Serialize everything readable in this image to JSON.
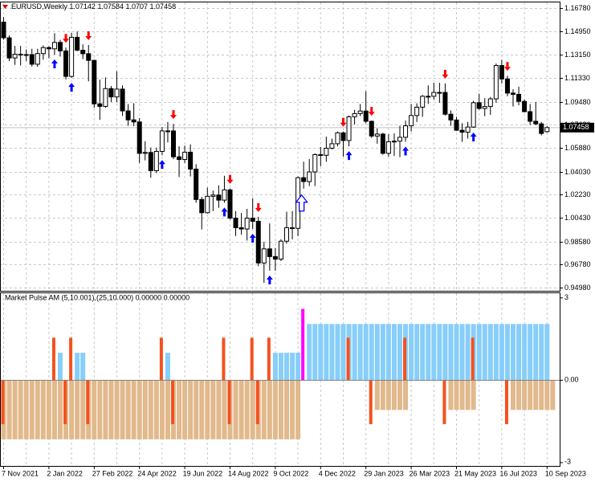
{
  "chart_data": [
    {
      "type": "candlestick",
      "symbol": "EURUSD,Weekly",
      "categories": [
        "7 Nov 2021",
        null,
        null,
        null,
        null,
        null,
        null,
        null,
        "2 Jan 2022",
        null,
        null,
        null,
        null,
        null,
        null,
        null,
        "27 Feb 2022",
        null,
        null,
        null,
        null,
        null,
        null,
        null,
        "24 Apr 2022",
        null,
        null,
        null,
        null,
        null,
        null,
        null,
        "19 Jun 2022",
        null,
        null,
        null,
        null,
        null,
        null,
        null,
        "14 Aug 2022",
        null,
        null,
        null,
        null,
        null,
        null,
        null,
        "9 Oct 2022",
        null,
        null,
        null,
        null,
        null,
        null,
        null,
        "4 Dec 2022",
        null,
        null,
        null,
        null,
        null,
        null,
        null,
        "29 Jan 2023",
        null,
        null,
        null,
        null,
        null,
        null,
        null,
        "26 Mar 2023",
        null,
        null,
        null,
        null,
        null,
        null,
        null,
        "21 May 2023",
        null,
        null,
        null,
        null,
        null,
        null,
        null,
        "16 Jul 2023",
        null,
        null,
        null,
        null,
        null,
        null,
        null,
        "10 Sep 2023"
      ],
      "open": [
        1.1568,
        1.1446,
        1.1289,
        1.1318,
        1.1315,
        1.1315,
        1.124,
        1.1323,
        1.137,
        1.136,
        1.141,
        1.1344,
        1.1145,
        1.145,
        1.1349,
        1.1322,
        1.127,
        1.0931,
        1.0911,
        1.105,
        1.0985,
        1.1046,
        1.0876,
        1.0806,
        1.079,
        1.0545,
        1.0552,
        1.041,
        1.056,
        1.072,
        1.072,
        1.0518,
        1.0497,
        1.0554,
        1.0422,
        1.0185,
        1.0082,
        1.021,
        1.022,
        1.018,
        1.026,
        1.004,
        0.9965,
        0.9955,
        1.004,
        1.0015,
        0.969,
        0.98,
        0.974,
        0.972,
        0.986,
        0.9965,
        0.996,
        1.0355,
        1.0325,
        1.04,
        1.0535,
        1.053,
        1.0585,
        1.062,
        1.0705,
        1.0645,
        1.083,
        1.0855,
        1.0875,
        1.0795,
        1.068,
        1.0695,
        1.0545,
        1.0635,
        1.064,
        1.067,
        1.076,
        1.084,
        1.0905,
        1.099,
        1.099,
        1.102,
        1.102,
        1.085,
        1.0805,
        1.0725,
        1.071,
        1.075,
        1.094,
        1.0895,
        1.091,
        1.097,
        1.123,
        1.1125,
        1.1015,
        1.1005,
        1.095,
        1.087,
        1.0795,
        1.0775,
        1.07142
      ],
      "high": [
        1.1608,
        1.1465,
        1.1383,
        1.1383,
        1.1355,
        1.136,
        1.136,
        1.1386,
        1.138,
        1.1482,
        1.143,
        1.137,
        1.1484,
        1.1495,
        1.1395,
        1.139,
        1.1275,
        1.112,
        1.1137,
        1.107,
        1.1185,
        1.1075,
        1.093,
        1.0936,
        1.082,
        1.064,
        1.059,
        1.059,
        1.075,
        1.079,
        1.0775,
        1.06,
        1.0605,
        1.0615,
        1.046,
        1.0205,
        1.0278,
        1.0255,
        1.0295,
        1.037,
        1.027,
        1.0095,
        1.008,
        1.0112,
        1.0195,
        1.005,
        0.9855,
        0.9999,
        0.9807,
        0.9875,
        1.009,
        1.0095,
        1.0365,
        1.048,
        1.05,
        1.0545,
        1.0595,
        1.0675,
        1.066,
        1.0715,
        1.0715,
        1.084,
        1.0885,
        1.093,
        1.103,
        1.08,
        1.074,
        1.0705,
        1.0695,
        1.07,
        1.076,
        1.08,
        1.093,
        1.0935,
        1.1,
        1.1075,
        1.1095,
        1.1095,
        1.109,
        1.088,
        1.083,
        1.078,
        1.079,
        1.0955,
        1.101,
        1.0975,
        1.0985,
        1.1245,
        1.1275,
        1.115,
        1.1045,
        1.1065,
        1.0965,
        1.093,
        1.0945,
        1.079,
        1.07584
      ],
      "low": [
        1.1432,
        1.1264,
        1.1235,
        1.123,
        1.1265,
        1.1222,
        1.122,
        1.1275,
        1.1286,
        1.1315,
        1.13,
        1.1121,
        1.1132,
        1.1341,
        1.128,
        1.1106,
        1.09,
        1.0806,
        1.09,
        1.0945,
        1.0945,
        1.0837,
        1.076,
        1.0757,
        1.047,
        1.049,
        1.0355,
        1.039,
        1.053,
        1.063,
        1.05,
        1.036,
        1.047,
        1.0365,
        1.016,
        0.9952,
        1.0075,
        1.0095,
        1.012,
        1.016,
        1.003,
        0.99,
        0.991,
        0.9865,
        0.9955,
        0.9665,
        0.9535,
        0.963,
        0.963,
        0.9705,
        0.984,
        0.9875,
        0.99,
        1.027,
        1.029,
        1.029,
        1.0445,
        1.048,
        1.0575,
        1.06,
        1.052,
        1.06,
        1.077,
        1.0835,
        1.078,
        1.0665,
        1.062,
        1.0535,
        1.052,
        1.0525,
        1.0515,
        1.0635,
        1.0715,
        1.079,
        1.083,
        1.093,
        1.0965,
        1.094,
        1.084,
        1.076,
        1.072,
        1.0635,
        1.066,
        1.0745,
        1.0885,
        1.0835,
        1.0845,
        1.094,
        1.109,
        1.099,
        1.091,
        1.092,
        1.0865,
        1.0765,
        1.0765,
        1.0685,
        1.0707
      ],
      "close": [
        1.1446,
        1.1289,
        1.1318,
        1.1315,
        1.1315,
        1.124,
        1.1323,
        1.137,
        1.136,
        1.141,
        1.1344,
        1.1145,
        1.145,
        1.1349,
        1.1322,
        1.127,
        1.0931,
        1.0911,
        1.105,
        1.0985,
        1.1046,
        1.0876,
        1.0806,
        1.079,
        1.0545,
        1.0552,
        1.041,
        1.056,
        1.072,
        1.072,
        1.0518,
        1.0497,
        1.0554,
        1.0422,
        1.0185,
        1.0082,
        1.021,
        1.022,
        1.018,
        1.026,
        1.004,
        0.9965,
        0.9955,
        1.004,
        1.0015,
        0.969,
        0.98,
        0.974,
        0.972,
        0.986,
        0.9965,
        0.996,
        1.0355,
        1.0325,
        1.04,
        1.0535,
        1.053,
        1.0585,
        1.062,
        1.0705,
        1.0645,
        1.083,
        1.0855,
        1.0875,
        1.0795,
        1.068,
        1.0695,
        1.0545,
        1.0635,
        1.064,
        1.067,
        1.076,
        1.084,
        1.0905,
        1.099,
        1.099,
        1.102,
        1.102,
        1.085,
        1.0805,
        1.0725,
        1.071,
        1.075,
        1.094,
        1.0895,
        1.091,
        1.097,
        1.123,
        1.1125,
        1.1015,
        1.1005,
        1.095,
        1.087,
        1.0795,
        1.0775,
        1.07,
        1.07458
      ],
      "up_color": "#ffffff",
      "down_color": "#000000",
      "up_arrows": [
        9,
        12,
        28,
        39,
        44,
        47,
        61,
        71,
        83
      ],
      "up_arrow_color": "#0000ff",
      "down_arrows": [
        11,
        15,
        30,
        40,
        45,
        60,
        65,
        78,
        89
      ],
      "down_arrow_color": "#ff0000",
      "big_up_arrows": [
        53
      ],
      "ylim": [
        0.9473,
        1.1722
      ],
      "yticks": [
        {
          "value": 1.1678,
          "label": "1.16780"
        },
        {
          "value": 1.1495,
          "label": "1.14950"
        },
        {
          "value": 1.1315,
          "label": "1.13150"
        },
        {
          "value": 1.1133,
          "label": "1.11330"
        },
        {
          "value": 1.0948,
          "label": "1.09480"
        },
        {
          "value": 1.0768,
          "label": "1.07680"
        },
        {
          "value": 1.0588,
          "label": "1.05880"
        },
        {
          "value": 1.0403,
          "label": "1.04030"
        },
        {
          "value": 1.0223,
          "label": "1.02230"
        },
        {
          "value": 1.0043,
          "label": "1.00430"
        },
        {
          "value": 0.9858,
          "label": "0.98580"
        },
        {
          "value": 0.9678,
          "label": "0.96780"
        },
        {
          "value": 0.9498,
          "label": "0.94980"
        }
      ],
      "grid": true
    },
    {
      "type": "bar",
      "title": "Market Pulse AM (5,10.001),(25,10.000) 0.00000 0.00000",
      "ylim": [
        -3.12,
        3.17
      ],
      "yticks": [
        3,
        {
          "value": 0,
          "label": "0.00"
        },
        -3
      ],
      "series": [
        {
          "color": "#e1b98c",
          "values": [
            -2.15,
            -2.15,
            -2.15,
            -2.15,
            -2.15,
            -2.15,
            -2.15,
            -2.15,
            -2.15,
            -2.15,
            -2.15,
            -2.15,
            -2.15,
            -2.15,
            -2.15,
            -2.15,
            -2.15,
            -2.15,
            -2.15,
            -2.15,
            -2.15,
            -2.15,
            -2.15,
            -2.15,
            -2.15,
            -2.15,
            -2.15,
            -2.15,
            -2.15,
            -2.15,
            -2.15,
            -2.15,
            -2.15,
            -2.15,
            -2.15,
            -2.15,
            -2.15,
            -2.15,
            -2.15,
            -2.15,
            -2.15,
            -2.15,
            -2.15,
            -2.15,
            -2.15,
            -2.15,
            -2.15,
            -2.15,
            -2.15,
            -2.15,
            -2.15,
            -2.15,
            -2.15,
            null,
            null,
            null,
            null,
            null,
            null,
            null,
            null,
            null,
            null,
            null,
            null,
            null,
            -1.08,
            -1.08,
            -1.08,
            -1.08,
            -1.08,
            -1.08,
            null,
            null,
            null,
            null,
            null,
            null,
            null,
            -1.08,
            -1.08,
            -1.08,
            -1.08,
            -1.08,
            null,
            null,
            null,
            null,
            null,
            null,
            -1.08,
            -1.08,
            -1.08,
            -1.08,
            -1.08,
            -1.08,
            -1.08,
            -1.08
          ]
        },
        {
          "color": "#87cefa",
          "values": [
            null,
            null,
            null,
            null,
            null,
            null,
            null,
            null,
            null,
            null,
            1,
            null,
            null,
            1,
            1,
            null,
            null,
            null,
            null,
            null,
            null,
            null,
            null,
            null,
            null,
            null,
            null,
            null,
            null,
            1,
            null,
            null,
            null,
            null,
            null,
            null,
            null,
            null,
            null,
            null,
            null,
            null,
            null,
            null,
            null,
            null,
            null,
            null,
            1,
            1,
            1,
            1,
            1,
            null,
            2.05,
            2.05,
            2.05,
            2.05,
            2.05,
            2.05,
            2.05,
            2.05,
            2.05,
            2.05,
            2.05,
            2.05,
            2.05,
            2.05,
            2.05,
            2.05,
            2.05,
            2.05,
            2.05,
            2.05,
            2.05,
            2.05,
            2.05,
            2.05,
            2.05,
            2.05,
            2.05,
            2.05,
            2.05,
            2.05,
            2.05,
            2.05,
            2.05,
            2.05,
            2.05,
            2.05,
            2.05,
            2.05,
            2.05,
            2.05,
            2.05,
            2.05,
            2.05
          ]
        },
        {
          "color": "#f4511e",
          "values": [
            -1.6,
            null,
            null,
            null,
            null,
            null,
            null,
            null,
            null,
            1.55,
            null,
            -1.6,
            1.55,
            null,
            null,
            -1.6,
            null,
            null,
            null,
            null,
            null,
            null,
            null,
            null,
            null,
            null,
            null,
            null,
            1.55,
            null,
            -1.6,
            null,
            null,
            null,
            null,
            null,
            null,
            null,
            null,
            1.55,
            -1.6,
            null,
            null,
            null,
            1.55,
            -1.6,
            null,
            1.55,
            null,
            null,
            null,
            null,
            null,
            null,
            null,
            null,
            null,
            null,
            null,
            null,
            null,
            1.55,
            null,
            null,
            null,
            -1.6,
            null,
            null,
            null,
            null,
            null,
            1.55,
            null,
            null,
            null,
            null,
            null,
            null,
            -1.6,
            null,
            null,
            null,
            null,
            1.55,
            null,
            null,
            null,
            null,
            null,
            -1.6,
            null,
            null,
            null,
            null,
            null,
            null,
            null
          ]
        },
        {
          "color": "#ff00ff",
          "values": [
            null,
            null,
            null,
            null,
            null,
            null,
            null,
            null,
            null,
            null,
            null,
            null,
            null,
            null,
            null,
            null,
            null,
            null,
            null,
            null,
            null,
            null,
            null,
            null,
            null,
            null,
            null,
            null,
            null,
            null,
            null,
            null,
            null,
            null,
            null,
            null,
            null,
            null,
            null,
            null,
            null,
            null,
            null,
            null,
            null,
            null,
            null,
            null,
            null,
            null,
            null,
            null,
            null,
            2.6,
            null,
            null,
            null,
            null,
            null,
            null,
            null,
            null,
            null,
            null,
            null,
            null,
            null,
            null,
            null,
            null,
            null,
            null,
            null,
            null,
            null,
            null,
            null,
            null,
            null,
            null,
            null,
            null,
            null,
            null,
            null,
            null,
            null,
            null,
            null,
            null,
            null,
            null,
            null,
            null,
            null,
            null,
            null
          ]
        }
      ],
      "grid": true
    }
  ]
}
